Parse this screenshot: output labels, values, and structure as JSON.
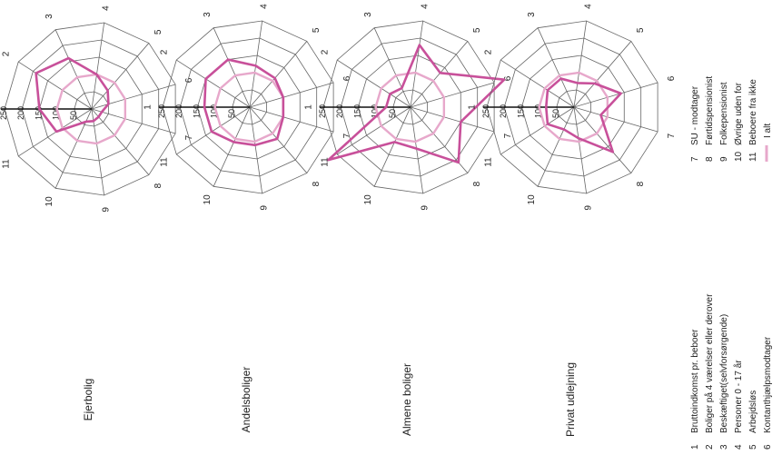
{
  "chart_data": [
    {
      "type": "radar",
      "title": "Ejerbolig",
      "axes": [
        "1",
        "2",
        "3",
        "4",
        "5",
        "6",
        "7",
        "8",
        "9",
        "10",
        "11"
      ],
      "rings": [
        "250",
        "200",
        "150",
        "100",
        "50"
      ],
      "series": [
        {
          "values": [
            150,
            190,
            160,
            100,
            70,
            50,
            30,
            30,
            35,
            40,
            120
          ]
        },
        {
          "values": [
            100,
            100,
            100,
            100,
            100,
            100,
            100,
            100,
            100,
            100,
            100
          ]
        }
      ],
      "rmax": 250
    },
    {
      "type": "radar",
      "title": "Andelsboliger",
      "axes": [
        "1",
        "2",
        "3",
        "4",
        "5",
        "6",
        "7",
        "8",
        "9",
        "10",
        "11"
      ],
      "rings": [
        "250",
        "200",
        "150",
        "100",
        "50"
      ],
      "series": [
        {
          "values": [
            130,
            150,
            150,
            120,
            110,
            100,
            100,
            120,
            110,
            110,
            130
          ]
        },
        {
          "values": [
            100,
            100,
            100,
            100,
            100,
            100,
            100,
            100,
            100,
            100,
            100
          ]
        }
      ],
      "rmax": 250
    },
    {
      "type": "radar",
      "title": "Almene boliger",
      "axes": [
        "1",
        "2",
        "3",
        "4",
        "5",
        "6",
        "7",
        "8",
        "9",
        "10",
        "11"
      ],
      "rings": [
        "250",
        "200",
        "150",
        "100",
        "50"
      ],
      "series": [
        {
          "values": [
            70,
            70,
            60,
            180,
            130,
            280,
            150,
            210,
            120,
            110,
            280
          ]
        },
        {
          "values": [
            100,
            100,
            100,
            100,
            100,
            100,
            100,
            100,
            100,
            100,
            100
          ]
        }
      ],
      "rmax": 250
    },
    {
      "type": "radar",
      "title": "Privat udlejning",
      "axes": [
        "1",
        "2",
        "3",
        "4",
        "5",
        "6",
        "7",
        "8",
        "9",
        "10",
        "11"
      ],
      "rings": [
        "250",
        "200",
        "150",
        "100",
        "50"
      ],
      "series": [
        {
          "values": [
            80,
            90,
            90,
            70,
            90,
            140,
            80,
            170,
            90,
            70,
            90
          ]
        },
        {
          "values": [
            100,
            100,
            100,
            100,
            100,
            100,
            100,
            100,
            100,
            100,
            100
          ]
        }
      ],
      "rmax": 250
    }
  ],
  "colors": {
    "data_line": "#c8509a",
    "reference_line": "#e7a8cb",
    "grid": "#666666"
  },
  "legend": {
    "items": [
      {
        "num": "1",
        "text": "Bruttoindkomst pr. beboer"
      },
      {
        "num": "2",
        "text": "Boliger på 4 værelser eller derover"
      },
      {
        "num": "3",
        "text": "Beskæftiget(selvforsørgende)"
      },
      {
        "num": "4",
        "text": "Personer 0 - 17 år"
      },
      {
        "num": "5",
        "text": "Arbejdsløs"
      },
      {
        "num": "6",
        "text": "Kontanthjælpsmodtager"
      },
      {
        "num": "7",
        "text": "SU - modtager"
      },
      {
        "num": "8",
        "text": "Førtidspensionist"
      },
      {
        "num": "9",
        "text": "Folkepensionist"
      },
      {
        "num": "10",
        "text": "Øvrige uden for"
      },
      {
        "num": "11",
        "text": "Beboere fra ikke"
      }
    ],
    "total_label": "I alt"
  }
}
